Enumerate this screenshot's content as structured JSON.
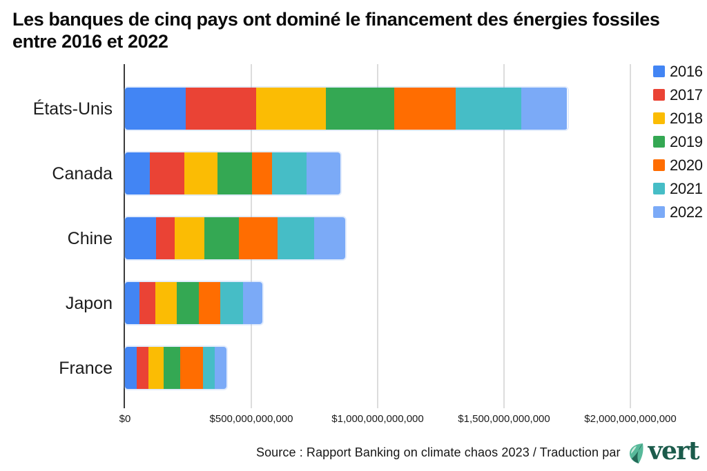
{
  "title": "Les banques de cinq pays ont dominé le financement des énergies fossiles\nentre 2016 et 2022",
  "source": {
    "text": "Source : Rapport Banking on climate chaos 2023 / Traduction par",
    "logo_text": "vert"
  },
  "colors": {
    "axis": "#3a3a3a",
    "gridline": "#dcdcdc",
    "logo_green": "#1b5b4b",
    "leaf_teal": "#54b royal"
  },
  "chart_data": {
    "type": "bar",
    "orientation": "horizontal",
    "stacked": true,
    "title": "Les banques de cinq pays ont dominé le financement des énergies fossiles entre 2016 et 2022",
    "unit": "USD",
    "values_scale_note": "values in billions of USD, read from bar lengths",
    "categories": [
      "États-Unis",
      "Canada",
      "Chine",
      "Japon",
      "France"
    ],
    "series": [
      {
        "name": "2016",
        "color": "#4285F4",
        "values": [
          240,
          99,
          122,
          58,
          47
        ]
      },
      {
        "name": "2017",
        "color": "#EA4335",
        "values": [
          279,
          135,
          76,
          61,
          45
        ]
      },
      {
        "name": "2018",
        "color": "#FBBC04",
        "values": [
          276,
          131,
          116,
          85,
          62
        ]
      },
      {
        "name": "2019",
        "color": "#34A853",
        "values": [
          270,
          138,
          136,
          89,
          66
        ]
      },
      {
        "name": "2020",
        "color": "#FF6D01",
        "values": [
          245,
          79,
          154,
          84,
          88
        ]
      },
      {
        "name": "2021",
        "color": "#46BDC6",
        "values": [
          258,
          137,
          146,
          89,
          48
        ]
      },
      {
        "name": "2022",
        "color": "#7BAAF7",
        "values": [
          182,
          133,
          122,
          79,
          46
        ]
      }
    ],
    "xlim": [
      0,
      2000
    ],
    "x_tick_values": [
      0,
      500,
      1000,
      1500,
      2000
    ],
    "x_tick_labels": [
      "$0",
      "$500,000,000,000",
      "$1,000,000,000,000",
      "$1,500,000,000,000",
      "$2,000,000,000,000"
    ],
    "legend_entries": [
      "2016",
      "2017",
      "2018",
      "2019",
      "2020",
      "2021",
      "2022"
    ],
    "legend_position": "top-right",
    "grid": true
  }
}
